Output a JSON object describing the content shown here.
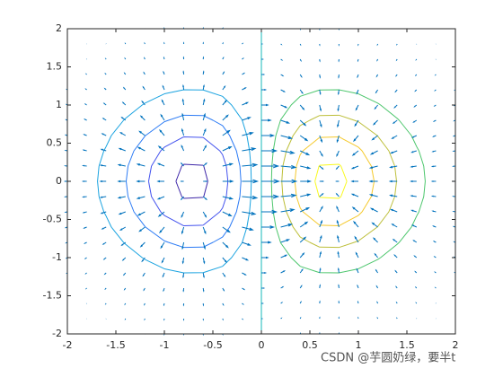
{
  "chart_data": {
    "type": "contour-quiver",
    "xlim": [
      -2,
      2
    ],
    "ylim": [
      -2,
      2
    ],
    "xticks": [
      -2,
      -1.5,
      -1,
      -0.5,
      0,
      0.5,
      1,
      1.5,
      2
    ],
    "yticks": [
      -2,
      -1.5,
      -1,
      -0.5,
      0,
      0.5,
      1,
      1.5,
      2
    ],
    "grid_x": [
      -2,
      -1.8,
      -1.6,
      -1.4,
      -1.2,
      -1,
      -0.8,
      -0.6,
      -0.4,
      -0.2,
      0,
      0.2,
      0.4,
      0.6,
      0.8,
      1,
      1.2,
      1.4,
      1.6,
      1.8,
      2
    ],
    "grid_y": [
      -2,
      -1.8,
      -1.6,
      -1.4,
      -1.2,
      -1,
      -0.8,
      -0.6,
      -0.4,
      -0.2,
      0,
      0.2,
      0.4,
      0.6,
      0.8,
      1,
      1.2,
      1.4,
      1.6,
      1.8,
      2
    ],
    "levels": [
      -0.4,
      -0.3,
      -0.2,
      -0.1,
      0,
      0.1,
      0.2,
      0.3,
      0.4
    ],
    "level_colors": [
      "#3d26a8",
      "#4352ee",
      "#2c7bf5",
      "#1aa3e0",
      "#14b9ba",
      "#4cc66c",
      "#bdbf3a",
      "#f5c92c",
      "#f9f91d"
    ],
    "quiver_color": "#0072bd"
  },
  "watermark": "CSDN @芋圆奶绿，要半t"
}
